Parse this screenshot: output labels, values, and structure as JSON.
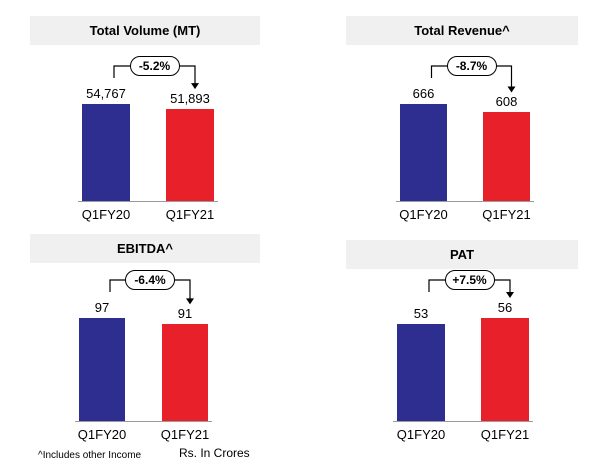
{
  "colors": {
    "q1fy20": "#2d2e8f",
    "q1fy21": "#e8202a",
    "header_bg": "#f0f0f0"
  },
  "chart_data": [
    {
      "type": "bar",
      "title": "Total Volume (MT)",
      "categories": [
        "Q1FY20",
        "Q1FY21"
      ],
      "values": [
        54767,
        51893
      ],
      "value_labels": [
        "54,767",
        "51,893"
      ],
      "change": "-5.2%"
    },
    {
      "type": "bar",
      "title": "Total Revenue^",
      "categories": [
        "Q1FY20",
        "Q1FY21"
      ],
      "values": [
        666,
        608
      ],
      "value_labels": [
        "666",
        "608"
      ],
      "change": "-8.7%"
    },
    {
      "type": "bar",
      "title": "EBITDA^",
      "categories": [
        "Q1FY20",
        "Q1FY21"
      ],
      "values": [
        97,
        91
      ],
      "value_labels": [
        "97",
        "91"
      ],
      "change": "-6.4%"
    },
    {
      "type": "bar",
      "title": "PAT",
      "categories": [
        "Q1FY20",
        "Q1FY21"
      ],
      "values": [
        53,
        56
      ],
      "value_labels": [
        "53",
        "56"
      ],
      "change": "+7.5%"
    }
  ],
  "footnote": "^Includes other Income",
  "units": "Rs. In Crores"
}
